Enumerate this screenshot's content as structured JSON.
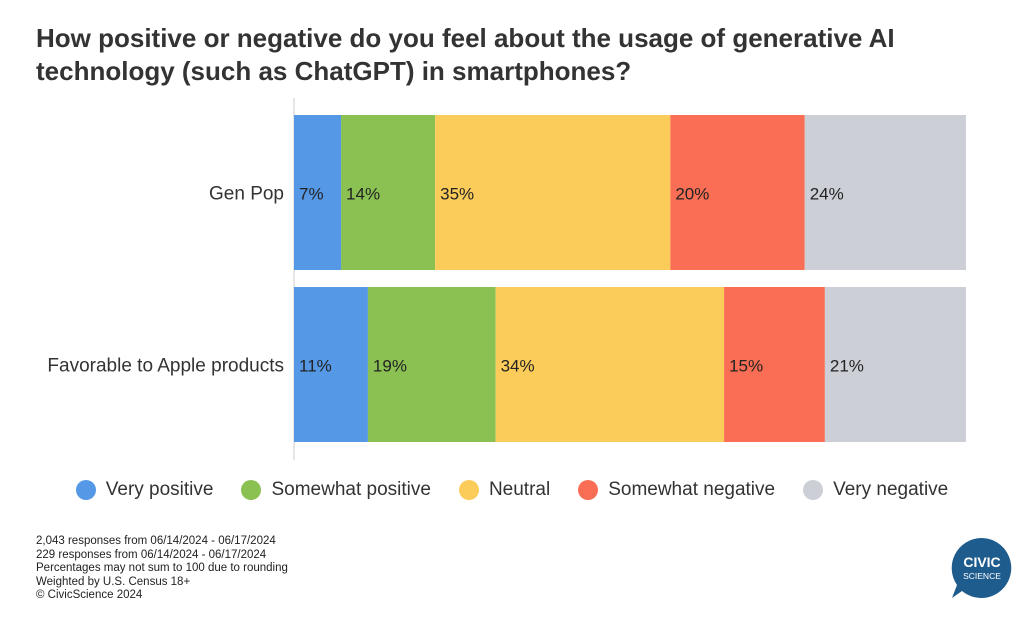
{
  "chart_data": {
    "type": "bar",
    "orientation": "horizontal",
    "stacked": true,
    "title": "How positive or negative do you feel about the usage of generative AI technology (such as ChatGPT) in smartphones?",
    "categories": [
      "Gen Pop",
      "Favorable to Apple products"
    ],
    "series": [
      {
        "name": "Very positive",
        "color": "#5599E6",
        "values": [
          7,
          11
        ],
        "labels": [
          "7%",
          "11%"
        ]
      },
      {
        "name": "Somewhat positive",
        "color": "#8BC153",
        "values": [
          14,
          19
        ],
        "labels": [
          "14%",
          "19%"
        ]
      },
      {
        "name": "Neutral",
        "color": "#FCCC5B",
        "values": [
          35,
          34
        ],
        "labels": [
          "35%",
          "34%"
        ]
      },
      {
        "name": "Somewhat negative",
        "color": "#FA6E55",
        "values": [
          20,
          15
        ],
        "labels": [
          "20%",
          "15%"
        ]
      },
      {
        "name": "Very negative",
        "color": "#CCCFD6",
        "values": [
          24,
          21
        ],
        "labels": [
          "24%",
          "21%"
        ]
      }
    ],
    "legend_position": "bottom",
    "grid": false
  },
  "notes": [
    "2,043 responses from 06/14/2024 - 06/17/2024",
    "229 responses from 06/14/2024 - 06/17/2024",
    "Percentages may not sum to 100 due to rounding",
    "Weighted by U.S. Census 18+",
    "© CivicScience 2024"
  ],
  "logo": {
    "line1": "CIVIC",
    "line2": "SCIENCE",
    "color": "#1F5C8E"
  }
}
